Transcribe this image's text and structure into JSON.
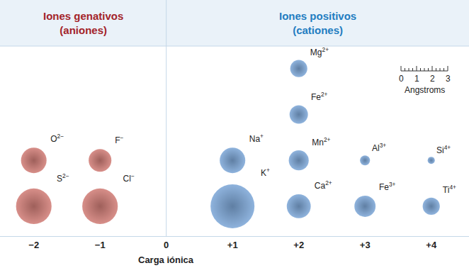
{
  "chart_data": {
    "type": "scatter",
    "xlabel": "Carga iónica",
    "headers": [
      {
        "lines": [
          "Iones genativos",
          "(aniones)"
        ],
        "color": "#a3232a"
      },
      {
        "lines": [
          "Iones positivos",
          "(cationes)"
        ],
        "color": "#1f7dc1"
      }
    ],
    "x": [
      -2,
      -2,
      -1,
      -1,
      1,
      1,
      2,
      2,
      2,
      2,
      3,
      3,
      4,
      4
    ],
    "labels": [
      "S",
      "O",
      "Cl",
      "F",
      "K",
      "Na",
      "Ca",
      "Mn",
      "Fe",
      "Mg",
      "Fe",
      "Al",
      "Ti",
      "Si"
    ],
    "charges": [
      "2−",
      "2−",
      "−",
      "−",
      "+",
      "+",
      "2+",
      "2+",
      "2+",
      "2+",
      "3+",
      "3+",
      "4+",
      "4+"
    ],
    "radius": [
      1.14,
      0.82,
      1.14,
      0.73,
      1.41,
      0.82,
      0.77,
      0.64,
      0.59,
      0.55,
      0.68,
      0.32,
      0.55,
      0.23
    ],
    "colors": [
      "#b42a1f",
      "#b42a1f",
      "#b42a1f",
      "#b42a1f",
      "#2a6fbf",
      "#2a6fbf",
      "#2a6fbf",
      "#2a6fbf",
      "#2a6fbf",
      "#2a6fbf",
      "#2a6fbf",
      "#2a6fbf",
      "#2a6fbf",
      "#2a6fbf"
    ],
    "xlim": [
      -2.51,
      4.57
    ],
    "xticks": [
      {
        "value": -2,
        "label": "−2"
      },
      {
        "value": -1,
        "label": "−1"
      },
      0,
      {
        "value": 1,
        "label": "+1"
      },
      {
        "value": 2,
        "label": "+2"
      },
      {
        "value": 3,
        "label": "+3"
      },
      {
        "value": 4,
        "label": "+4"
      }
    ],
    "scale": {
      "ticks": [
        0,
        1,
        2,
        3
      ],
      "label": "Angstroms"
    },
    "tick_labels": "x",
    "grid": false
  }
}
